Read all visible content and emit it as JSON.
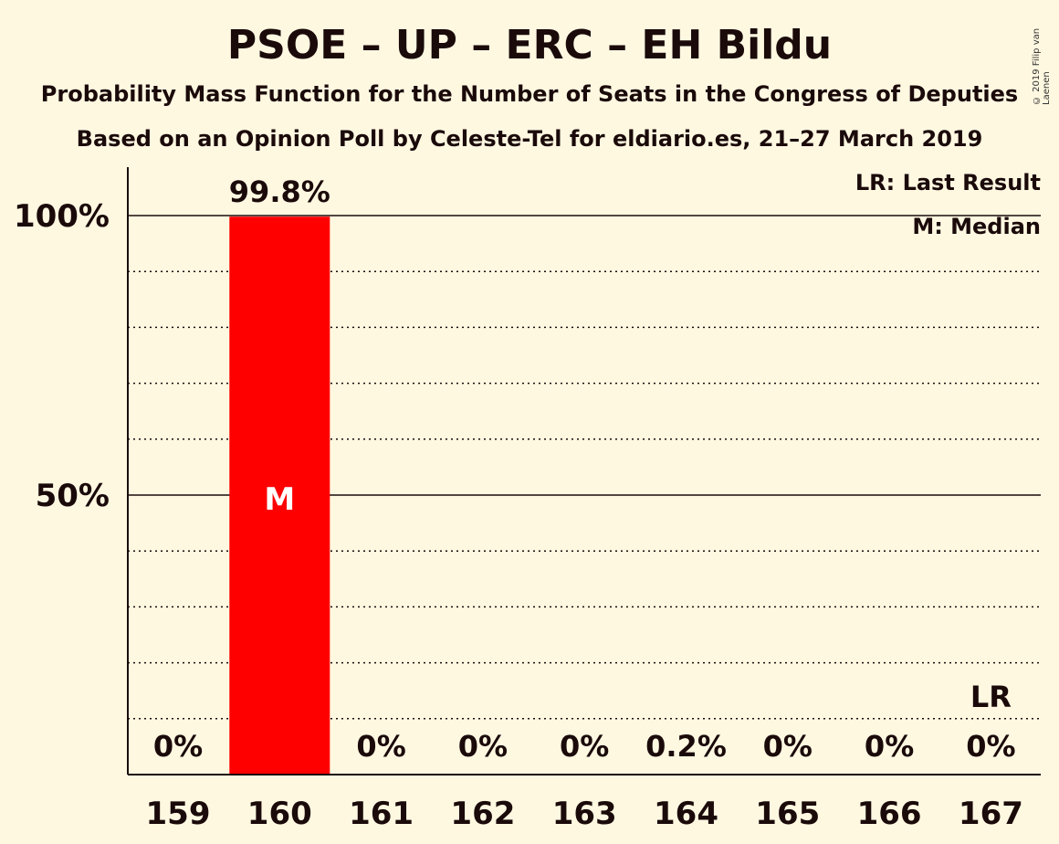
{
  "title": "PSOE – UP – ERC – EH Bildu",
  "subtitle": "Probability Mass Function for the Number of Seats in the Congress of Deputies",
  "subtitle2": "Based on an Opinion Poll by Celeste-Tel for eldiario.es, 21–27 March 2019",
  "copyright": "© 2019 Filip van Laenen",
  "legend": {
    "last_result": "LR: Last Result",
    "median": "M: Median"
  },
  "colors": {
    "background": "#FFF8E1",
    "bar": "#FF0000",
    "text": "#1a0a0a"
  },
  "chart_data": {
    "type": "bar",
    "categories": [
      "159",
      "160",
      "161",
      "162",
      "163",
      "164",
      "165",
      "166",
      "167"
    ],
    "values": [
      0,
      99.8,
      0,
      0,
      0,
      0.2,
      0,
      0,
      0
    ],
    "value_labels": [
      "0%",
      "99.8%",
      "0%",
      "0%",
      "0%",
      "0.2%",
      "0%",
      "0%",
      "0%"
    ],
    "ylim": [
      0,
      110
    ],
    "yticks": [
      {
        "value": 50,
        "label": "50%"
      },
      {
        "value": 100,
        "label": "100%"
      }
    ],
    "minor_gridlines": [
      10,
      20,
      30,
      40,
      60,
      70,
      80,
      90
    ],
    "median_category": "160",
    "median_marker": "M",
    "last_result_category": "167",
    "last_result_marker": "LR"
  }
}
